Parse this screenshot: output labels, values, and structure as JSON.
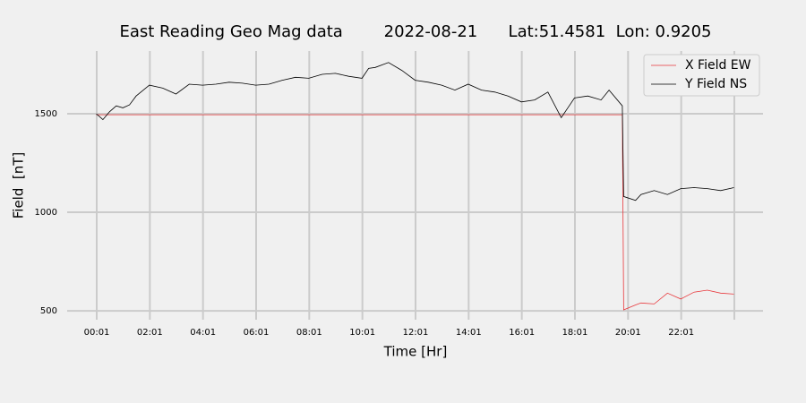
{
  "chart_data": {
    "type": "line",
    "title": "East Reading Geo Mag data        2022-08-21      Lat:51.4581  Lon: 0.9205",
    "x_label": "Time  [Hr]",
    "y_label": "Field  [nT]",
    "x": [
      0,
      0.25,
      0.5,
      0.75,
      1,
      1.25,
      1.5,
      2,
      2.5,
      3,
      3.5,
      4,
      4.5,
      5,
      5.5,
      6,
      6.5,
      7,
      7.5,
      8,
      8.5,
      9,
      9.5,
      10,
      10.25,
      10.5,
      11,
      11.5,
      12,
      12.5,
      13,
      13.5,
      14,
      14.5,
      15,
      15.5,
      16,
      16.5,
      17,
      17.5,
      18,
      18.5,
      19,
      19.3,
      19.8,
      19.85,
      20.3,
      20.5,
      21,
      21.5,
      22,
      22.5,
      23,
      23.5,
      24
    ],
    "series": [
      {
        "name": "X Field EW",
        "color": "#e8373b",
        "values": [
          1495,
          1495,
          1495,
          1495,
          1495,
          1495,
          1495,
          1495,
          1495,
          1495,
          1495,
          1495,
          1495,
          1495,
          1495,
          1495,
          1495,
          1495,
          1495,
          1495,
          1495,
          1495,
          1495,
          1495,
          1495,
          1495,
          1495,
          1495,
          1495,
          1495,
          1495,
          1495,
          1495,
          1495,
          1495,
          1495,
          1495,
          1495,
          1495,
          1495,
          1495,
          1495,
          1495,
          1495,
          1495,
          505,
          530,
          540,
          535,
          590,
          560,
          595,
          605,
          590,
          585
        ]
      },
      {
        "name": "Y Field NS",
        "color": "#000000",
        "values": [
          1500,
          1470,
          1510,
          1540,
          1530,
          1545,
          1590,
          1645,
          1630,
          1600,
          1650,
          1645,
          1650,
          1660,
          1655,
          1645,
          1650,
          1670,
          1685,
          1680,
          1700,
          1705,
          1690,
          1680,
          1730,
          1735,
          1760,
          1720,
          1670,
          1660,
          1645,
          1620,
          1650,
          1620,
          1610,
          1590,
          1560,
          1570,
          1610,
          1480,
          1580,
          1590,
          1570,
          1620,
          1540,
          1080,
          1060,
          1090,
          1110,
          1090,
          1120,
          1125,
          1120,
          1110,
          1125
        ]
      }
    ],
    "xlim": [
      -1.096,
      25.096
    ],
    "xticks": [
      {
        "value": 0.0167,
        "label": "00:01"
      },
      {
        "value": 2.0167,
        "label": "02:01"
      },
      {
        "value": 4.0167,
        "label": "04:01"
      },
      {
        "value": 6.0167,
        "label": "06:01"
      },
      {
        "value": 8.0167,
        "label": "08:01"
      },
      {
        "value": 10.0167,
        "label": "10:01"
      },
      {
        "value": 12.0167,
        "label": "12:01"
      },
      {
        "value": 14.0167,
        "label": "14:01"
      },
      {
        "value": 16.0167,
        "label": "16:01"
      },
      {
        "value": 18.0167,
        "label": "18:01"
      },
      {
        "value": 20.0167,
        "label": "20:01"
      },
      {
        "value": 22.0167,
        "label": "22:01"
      },
      {
        "value": 24.0167,
        "label": null
      }
    ],
    "ylim": [
      455,
      1818
    ],
    "yticks": [
      500,
      1000,
      1500
    ],
    "grid": true,
    "legend": "upper right"
  }
}
